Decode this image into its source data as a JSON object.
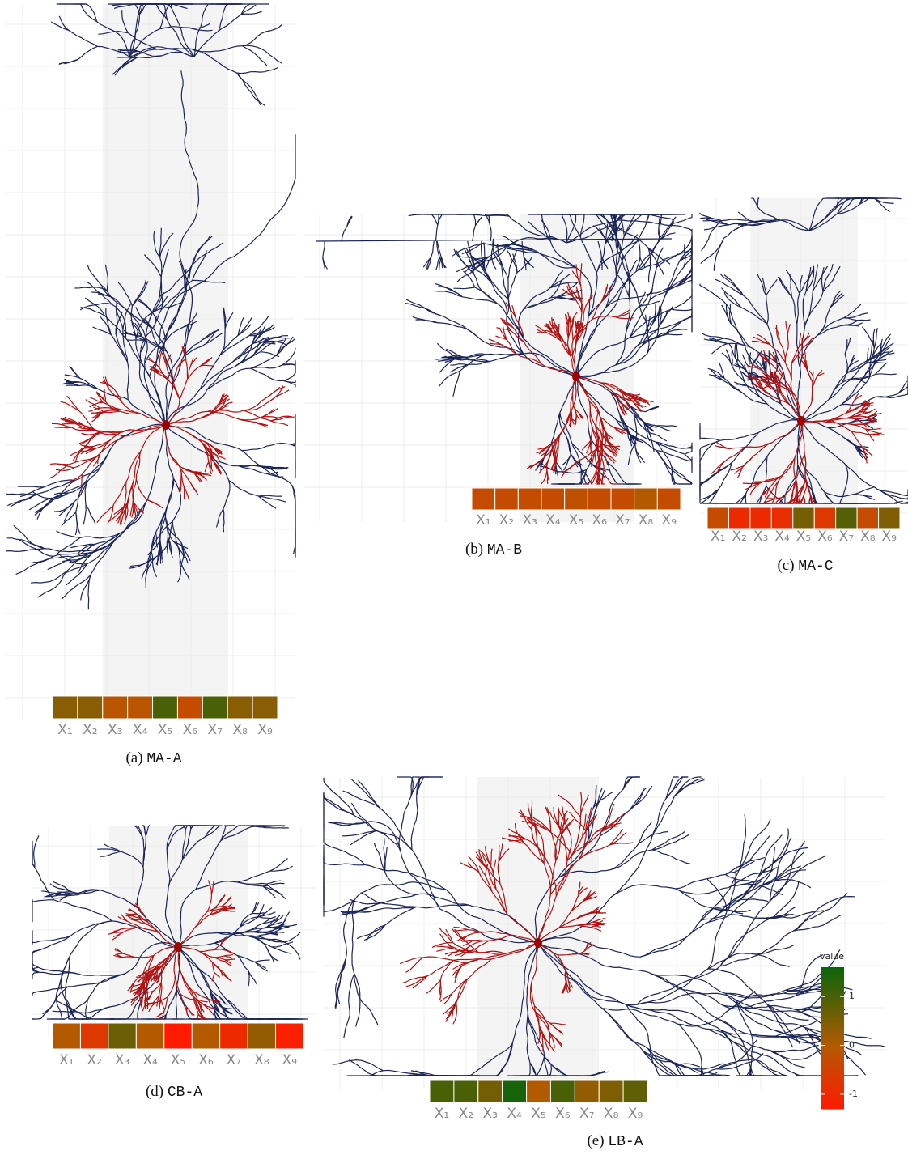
{
  "figure": {
    "panels": [
      {
        "label": "(a)",
        "name": "MA-A",
        "labels": [
          "X₁",
          "X₂",
          "X₃",
          "X₄",
          "X₅",
          "X₆",
          "X₇",
          "X₈",
          "X₉"
        ],
        "values": [
          0.4,
          0.4,
          -0.1,
          -0.1,
          1.0,
          -0.3,
          1.0,
          0.4,
          0.4
        ]
      },
      {
        "label": "(b)",
        "name": "MA-B",
        "labels": [
          "X₁",
          "X₂",
          "X₃",
          "X₄",
          "X₅",
          "X₆",
          "X₇",
          "X₈",
          "X₉"
        ],
        "values": [
          -0.3,
          -0.3,
          -0.3,
          -0.3,
          -0.2,
          -0.3,
          -0.3,
          0.0,
          -0.3
        ]
      },
      {
        "label": "(c)",
        "name": "MA-C",
        "labels": [
          "X₁",
          "X₂",
          "X₃",
          "X₄",
          "X₅",
          "X₆",
          "X₇",
          "X₈",
          "X₉"
        ],
        "values": [
          -0.3,
          -1.0,
          -1.0,
          -0.9,
          0.6,
          -0.7,
          0.9,
          -0.3,
          0.5
        ]
      },
      {
        "label": "(d)",
        "name": "CB-A",
        "labels": [
          "X₁",
          "X₂",
          "X₃",
          "X₄",
          "X₅",
          "X₆",
          "X₇",
          "X₈",
          "X₉"
        ],
        "values": [
          0.0,
          -0.7,
          0.7,
          0.0,
          -1.3,
          0.0,
          -1.0,
          0.3,
          -1.2
        ]
      },
      {
        "label": "(e)",
        "name": "LB-A",
        "labels": [
          "X₁",
          "X₂",
          "X₃",
          "X₄",
          "X₅",
          "X₆",
          "X₇",
          "X₈",
          "X₉"
        ],
        "values": [
          1.0,
          1.0,
          0.6,
          1.5,
          0.0,
          1.0,
          0.3,
          0.5,
          0.8
        ]
      }
    ],
    "colorbar": {
      "title": "value",
      "lim": [
        -1.3,
        1.6
      ],
      "ticks": [
        -1,
        0,
        1
      ],
      "colors": {
        "low": "#ff1a00",
        "mid": "#b35a00",
        "high": "#0b640b"
      }
    }
  }
}
